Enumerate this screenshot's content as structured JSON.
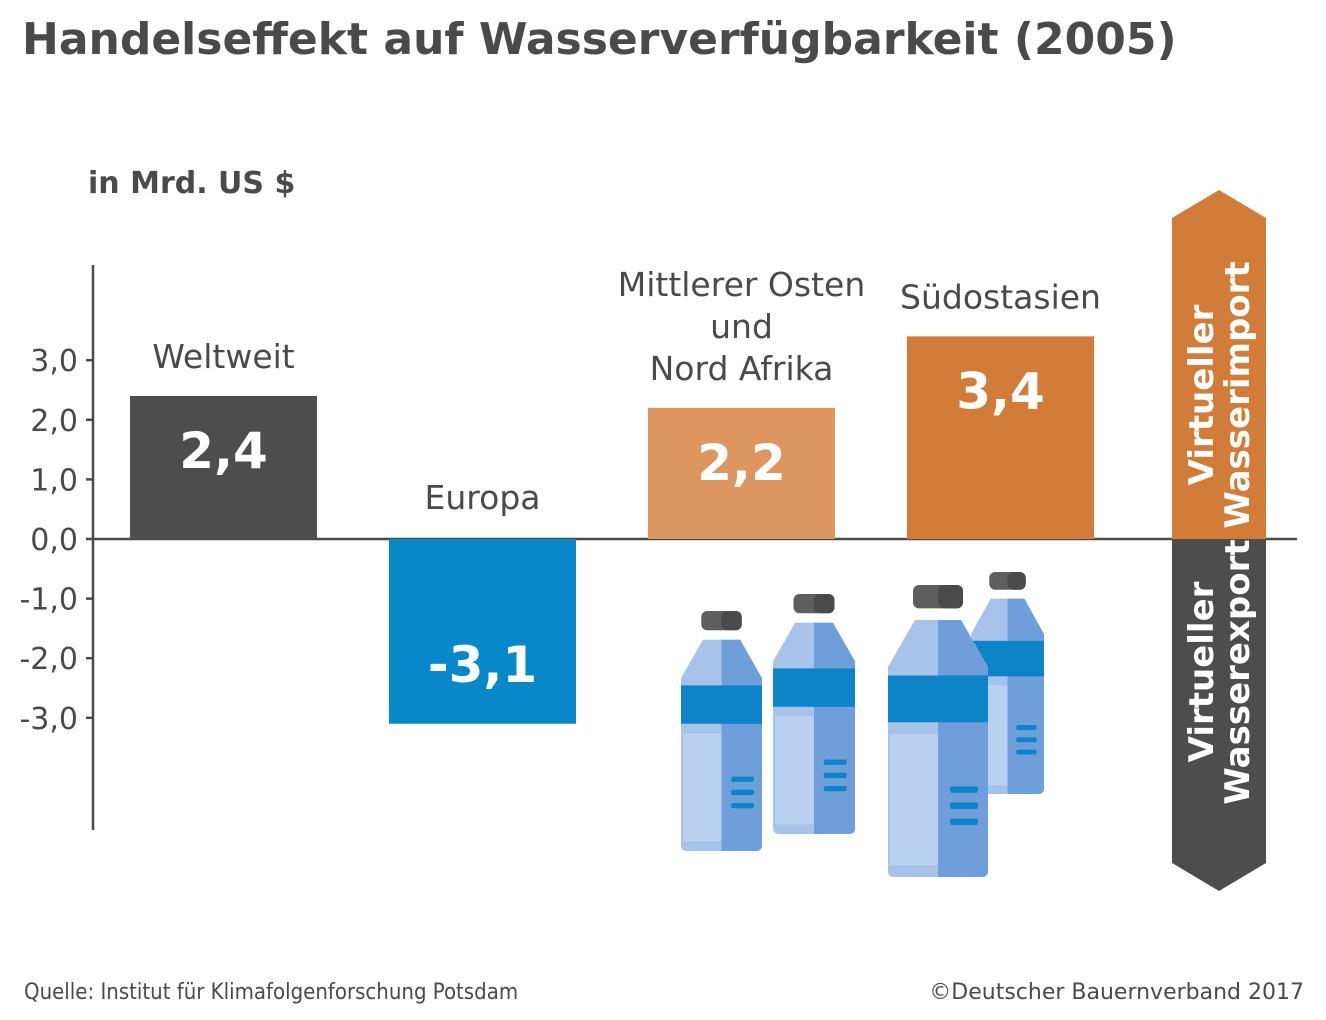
{
  "title": "Handelseffekt auf Wasserverfügbarkeit (2005)",
  "unit_label": "in Mrd. US $",
  "source": "Quelle: Institut für Klimafolgenforschung Potsdam",
  "copyright": "©Deutscher Bauernverband 2017",
  "arrow_up_label": [
    "Virtueller",
    "Wasserimport"
  ],
  "arrow_down_label": [
    "Virtueller",
    "Wasserexport"
  ],
  "colors": {
    "text": "#4a4a4a",
    "weltweit": "#4d4d4d",
    "europa": "#0888cb",
    "mena": "#dd9660",
    "suedostasien": "#d27c3a",
    "arrow_import": "#d27c3a",
    "arrow_export": "#4d4d4d",
    "bottle_light": "#a8c3ea",
    "bottle_dark": "#6f9fdb",
    "bottle_band": "#0c84c7",
    "bottle_cap": "#5e5e5e"
  },
  "chart_data": {
    "type": "bar",
    "categories": [
      [
        "Weltweit"
      ],
      [
        "Europa"
      ],
      [
        "Mittlerer Osten",
        "und",
        "Nord Afrika"
      ],
      [
        "Südostasien"
      ]
    ],
    "values": [
      2.4,
      -3.1,
      2.2,
      3.4
    ],
    "value_labels": [
      "2,4",
      "-3,1",
      "2,2",
      "3,4"
    ],
    "yticks": [
      3,
      2,
      1,
      0,
      -1,
      -2,
      -3
    ],
    "ytick_labels": [
      "3,0",
      "2,0",
      "1,0",
      "0,0",
      "-1,0",
      "-2,0",
      "-3,0"
    ],
    "ylim": [
      -4.8,
      4.5
    ],
    "ylabel": "in Mrd. US $"
  }
}
